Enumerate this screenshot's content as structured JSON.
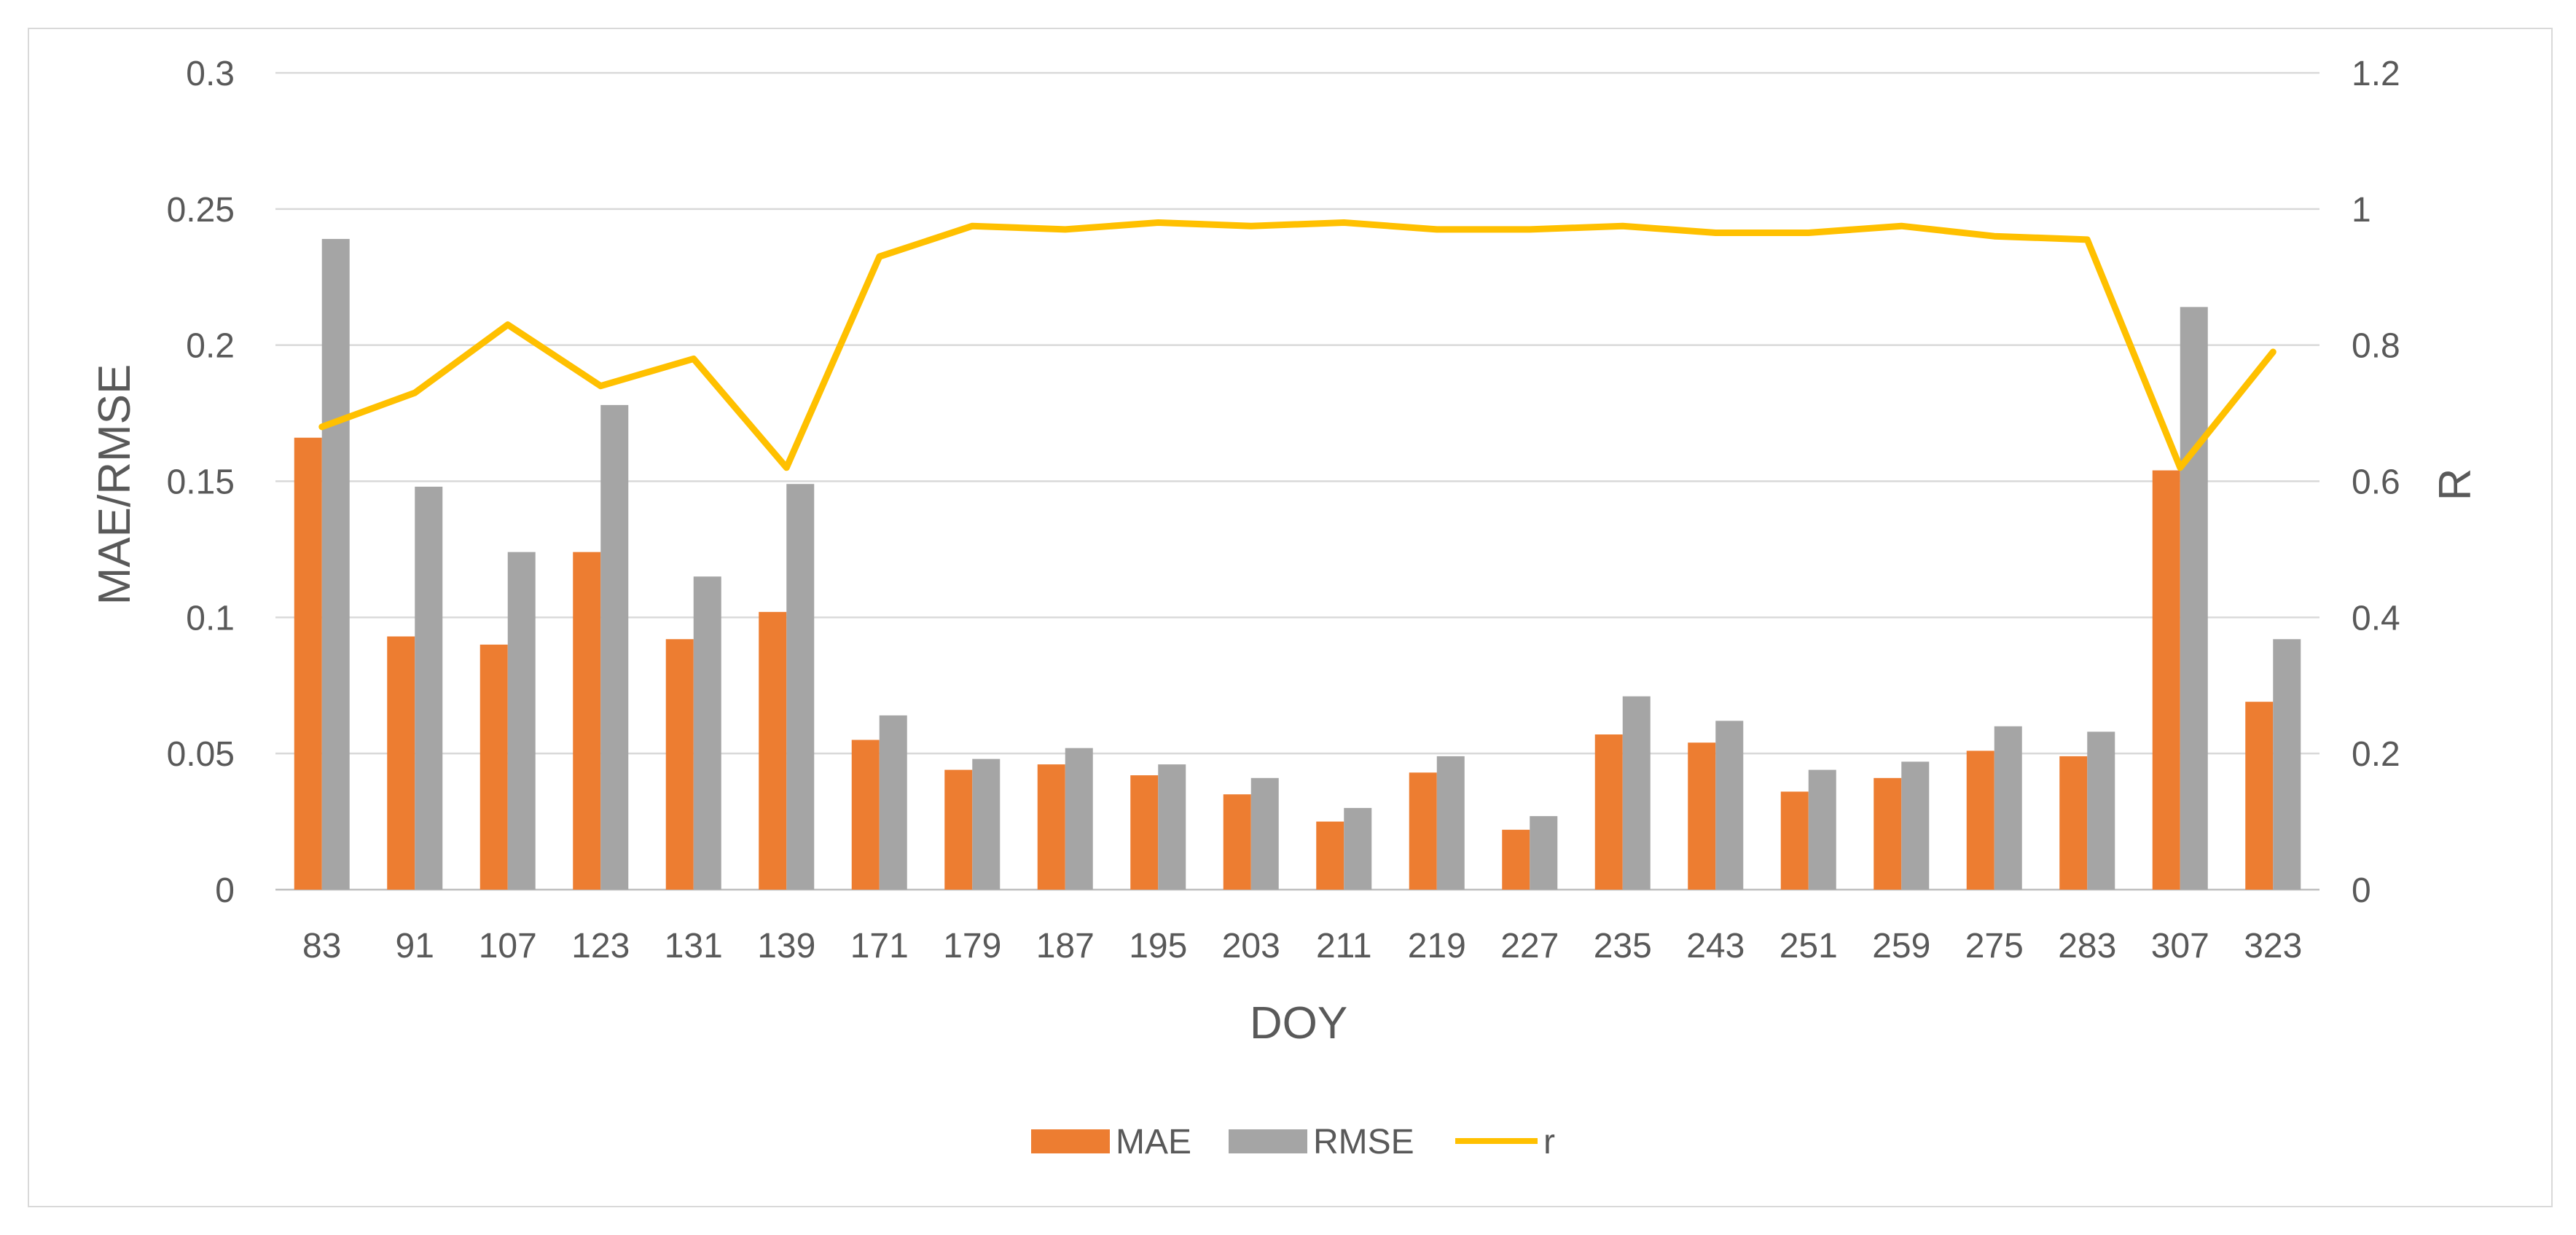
{
  "chart_data": {
    "type": "bar",
    "xlabel": "DOY",
    "ylabel": "MAE/RMSE",
    "y2label": "R",
    "ylim": [
      0,
      0.3
    ],
    "y2lim": [
      0,
      1.2
    ],
    "yticks": [
      "0",
      "0.05",
      "0.1",
      "0.15",
      "0.2",
      "0.25",
      "0.3"
    ],
    "y2ticks": [
      "0",
      "0.2",
      "0.4",
      "0.6",
      "0.8",
      "1",
      "1.2"
    ],
    "grid": true,
    "legend_position": "bottom",
    "categories": [
      "83",
      "91",
      "107",
      "123",
      "131",
      "139",
      "171",
      "179",
      "187",
      "195",
      "203",
      "211",
      "219",
      "227",
      "235",
      "243",
      "251",
      "259",
      "275",
      "283",
      "307",
      "323"
    ],
    "series": [
      {
        "name": "MAE",
        "type": "bar",
        "axis": "left",
        "color": "#ED7D31",
        "values": [
          0.166,
          0.093,
          0.09,
          0.124,
          0.092,
          0.102,
          0.055,
          0.044,
          0.046,
          0.042,
          0.035,
          0.025,
          0.043,
          0.022,
          0.057,
          0.054,
          0.036,
          0.041,
          0.051,
          0.049,
          0.154,
          0.069
        ]
      },
      {
        "name": "RMSE",
        "type": "bar",
        "axis": "left",
        "color": "#A5A5A5",
        "values": [
          0.239,
          0.148,
          0.124,
          0.178,
          0.115,
          0.149,
          0.064,
          0.048,
          0.052,
          0.046,
          0.041,
          0.03,
          0.049,
          0.027,
          0.071,
          0.062,
          0.044,
          0.047,
          0.06,
          0.058,
          0.214,
          0.092
        ]
      },
      {
        "name": "r",
        "type": "line",
        "axis": "right",
        "color": "#FFC000",
        "values": [
          0.68,
          0.73,
          0.83,
          0.74,
          0.78,
          0.62,
          0.93,
          0.975,
          0.97,
          0.98,
          0.975,
          0.98,
          0.97,
          0.97,
          0.975,
          0.965,
          0.965,
          0.975,
          0.96,
          0.955,
          0.62,
          0.79
        ]
      }
    ]
  }
}
